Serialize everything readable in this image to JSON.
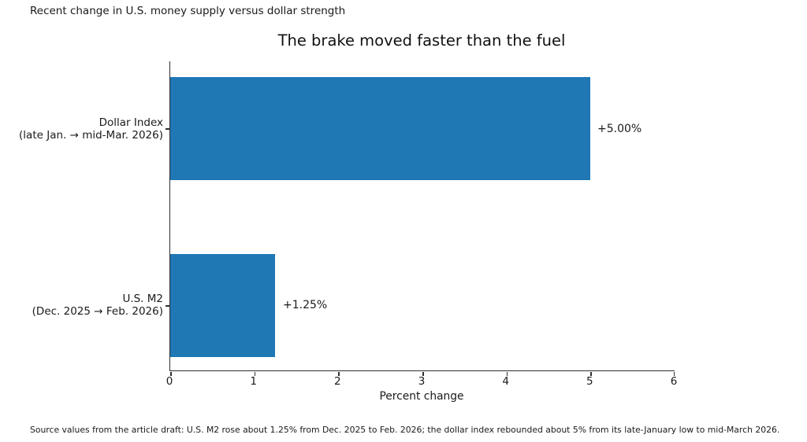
{
  "figure": {
    "note": "Recent change in U.S. money supply versus dollar strength",
    "source_note": "Source values from the article draft: U.S. M2 rose about 1.25% from Dec. 2025 to Feb. 2026; the dollar index rebounded about 5% from its late-January low to mid-March 2026.",
    "background_color": "#ffffff",
    "text_color": "#1a1a1a"
  },
  "chart_data": {
    "type": "bar",
    "orientation": "horizontal",
    "title": "The brake moved faster than the fuel",
    "categories": [
      "Dollar Index (late Jan. → mid-Mar. 2026)",
      "U.S. M2 (Dec. 2025 → Feb. 2026)"
    ],
    "values": [
      5.0,
      1.25
    ],
    "bars": [
      {
        "label_line1": "Dollar Index",
        "label_line2": "(late Jan. → mid-Mar. 2026)",
        "value": 5.0,
        "value_label": "+5.00%"
      },
      {
        "label_line1": "U.S. M2",
        "label_line2": "(Dec. 2025 → Feb. 2026)",
        "value": 1.25,
        "value_label": "+1.25%"
      }
    ],
    "xlabel": "Percent change",
    "xlim": [
      0,
      6
    ],
    "xtick_labels": [
      "0",
      "1",
      "2",
      "3",
      "4",
      "5",
      "6"
    ],
    "bar_color": "#1f77b4",
    "grid": false,
    "legend_position": "none"
  }
}
